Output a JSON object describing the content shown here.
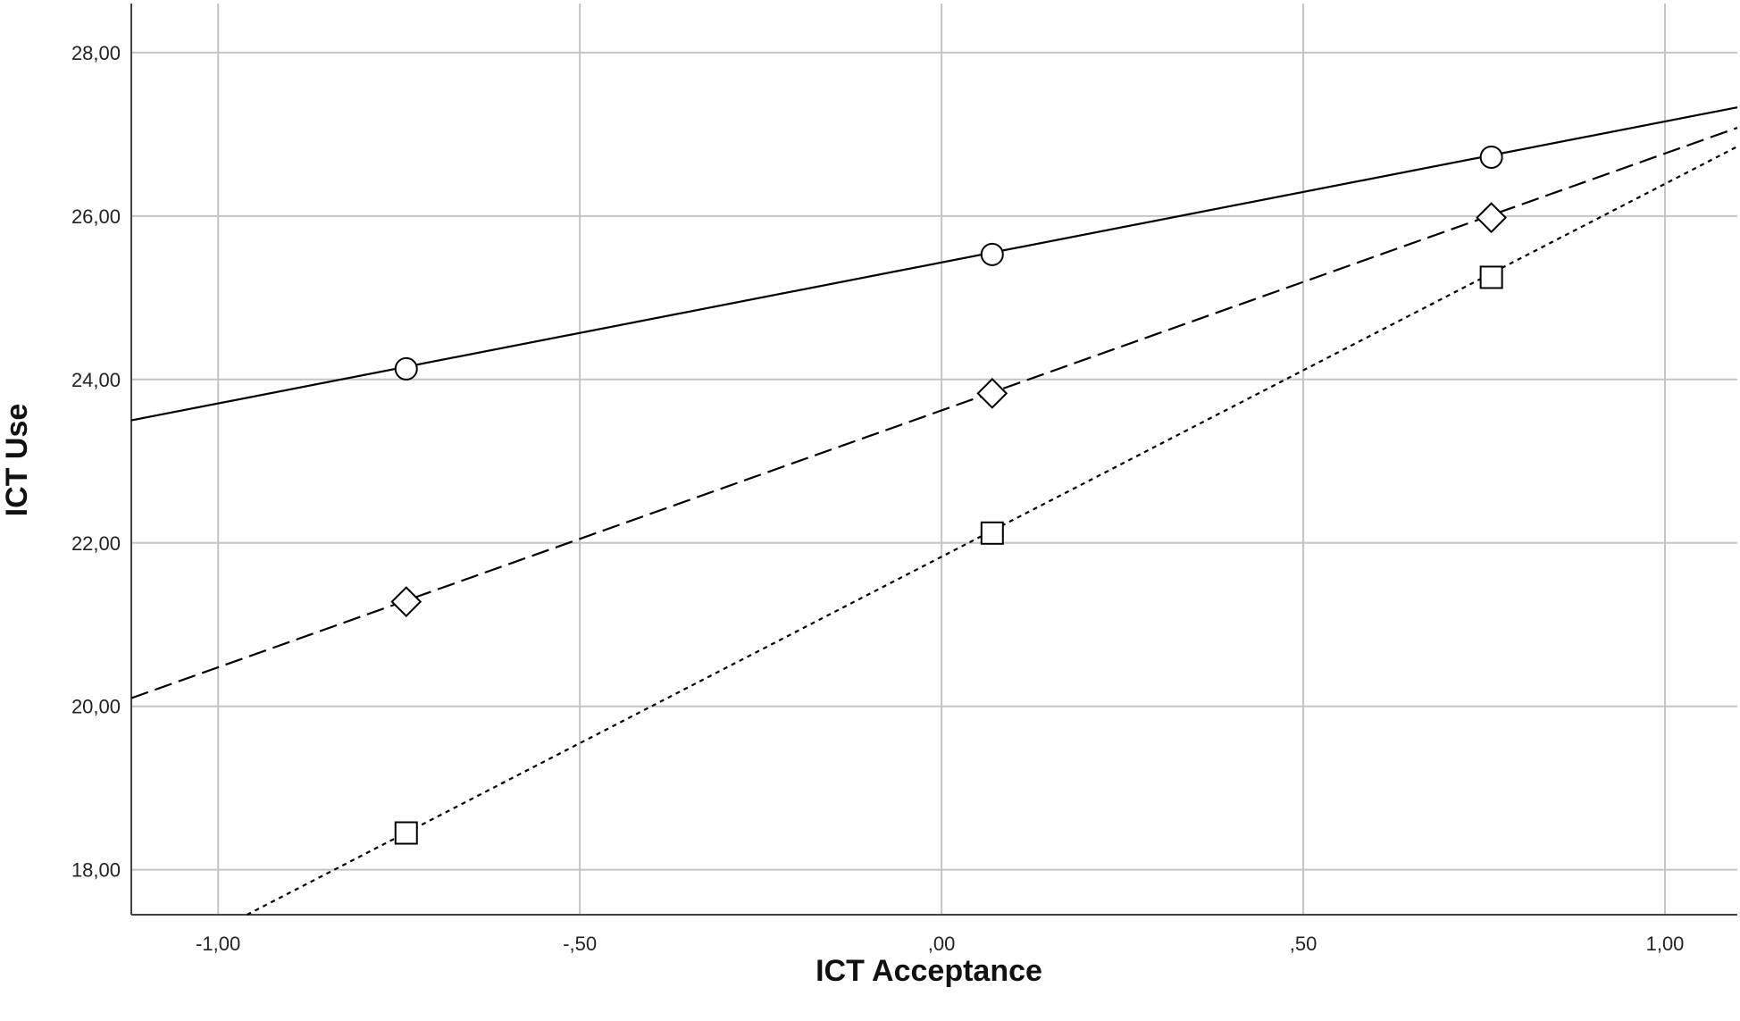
{
  "chart_data": {
    "type": "line",
    "xlabel": "ICT Acceptance",
    "ylabel": "ICT Use",
    "xlim": [
      -1.12,
      1.1
    ],
    "ylim": [
      17.45,
      28.6
    ],
    "x_ticks": [
      -1.0,
      -0.5,
      0.0,
      0.5,
      1.0
    ],
    "x_tick_labels": [
      "-1,00",
      "-,50",
      ",00",
      ",50",
      "1,00"
    ],
    "y_ticks": [
      18,
      20,
      22,
      24,
      26,
      28
    ],
    "y_tick_labels": [
      "18,00",
      "20,00",
      "22,00",
      "24,00",
      "26,00",
      "28,00"
    ],
    "grid": true,
    "legend": "none",
    "series": [
      {
        "marker": "circle",
        "line_style": "solid",
        "color": "#000000",
        "line_x": [
          -1.12,
          1.1
        ],
        "line_y": [
          23.5,
          27.33
        ],
        "points_x": [
          -0.74,
          0.07,
          0.76
        ],
        "points_y": [
          24.13,
          25.53,
          26.72
        ]
      },
      {
        "marker": "diamond",
        "line_style": "dashed",
        "color": "#000000",
        "line_x": [
          -1.12,
          1.1
        ],
        "line_y": [
          20.1,
          27.08
        ],
        "points_x": [
          -0.74,
          0.07,
          0.76
        ],
        "points_y": [
          21.28,
          23.83,
          25.98
        ]
      },
      {
        "marker": "square",
        "line_style": "dotted",
        "color": "#000000",
        "line_x": [
          -0.96,
          1.1
        ],
        "line_y": [
          17.45,
          26.85
        ],
        "points_x": [
          -0.74,
          0.07,
          0.76
        ],
        "points_y": [
          18.45,
          22.12,
          25.25
        ]
      }
    ]
  }
}
